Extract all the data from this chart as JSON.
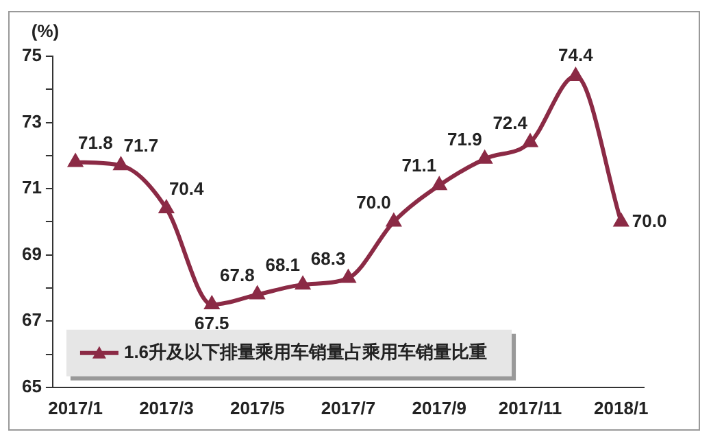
{
  "chart_data": {
    "type": "line",
    "ylabel": "(%)",
    "categories": [
      "2017/1",
      null,
      "2017/3",
      null,
      "2017/5",
      null,
      "2017/7",
      null,
      "2017/9",
      null,
      "2017/11",
      null,
      "2018/1"
    ],
    "series": [
      {
        "name": "1.6升及以下排量乘用车销量占乘用车销量比重",
        "color": "#8b2a45",
        "values": [
          71.8,
          71.7,
          70.4,
          67.5,
          67.8,
          68.1,
          68.3,
          70.0,
          71.1,
          71.9,
          72.4,
          74.4,
          70.0
        ],
        "value_labels": [
          "71.8",
          "71.7",
          "70.4",
          "67.5",
          "67.8",
          "68.1",
          "68.3",
          "70.0",
          "71.1",
          "71.9",
          "72.4",
          "74.4",
          "70.0"
        ]
      }
    ],
    "ylim": [
      65,
      75
    ],
    "yticks": [
      65,
      {
        "value": 66,
        "label": null
      },
      67,
      {
        "value": 68,
        "label": null
      },
      69,
      {
        "value": 70,
        "label": null
      },
      71,
      {
        "value": 72,
        "label": null
      },
      73,
      {
        "value": 74,
        "label": null
      },
      75
    ],
    "grid": false,
    "legend": "bottom left",
    "marker": "triangle",
    "line_style": "solid"
  }
}
